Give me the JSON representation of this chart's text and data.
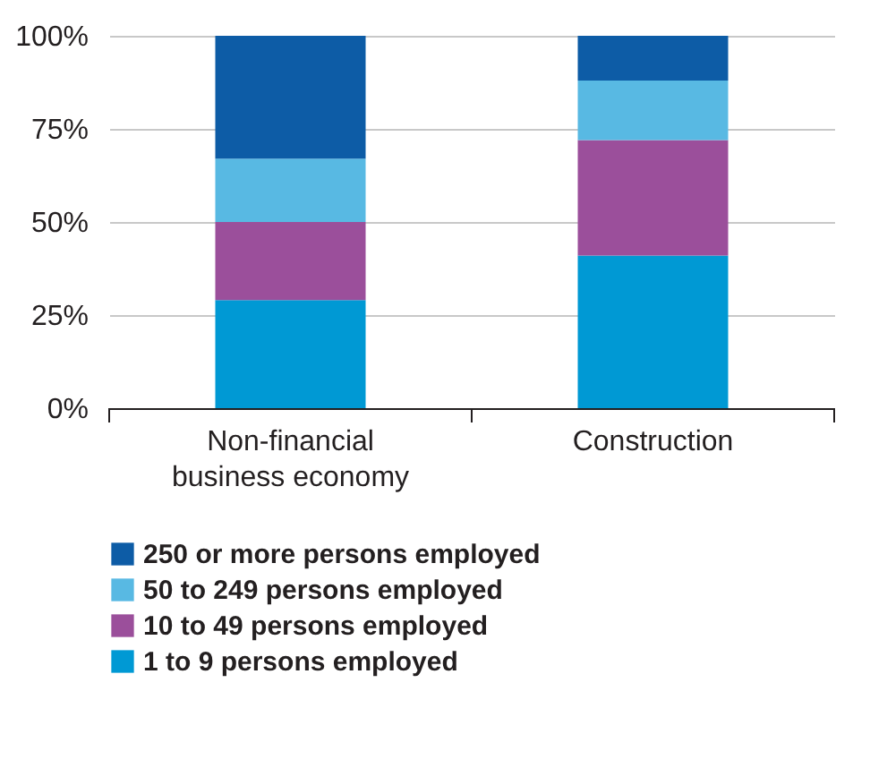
{
  "chart_data": {
    "type": "bar",
    "stacked": true,
    "categories": [
      "Non-financial\nbusiness economy",
      "Construction"
    ],
    "series": [
      {
        "name": "1 to 9 persons employed",
        "color": "#0099d4",
        "values": [
          29,
          41
        ]
      },
      {
        "name": "10 to 49 persons employed",
        "color": "#9b4f9b",
        "values": [
          21,
          31
        ]
      },
      {
        "name": "50 to 249 persons employed",
        "color": "#58b9e3",
        "values": [
          17,
          16
        ]
      },
      {
        "name": "250 or more persons employed",
        "color": "#0d5ca6",
        "values": [
          33,
          12
        ]
      }
    ],
    "ylim": [
      0,
      100
    ],
    "yticks": [
      {
        "value": 0,
        "label": "0%"
      },
      {
        "value": 25,
        "label": "25%"
      },
      {
        "value": 50,
        "label": "50%"
      },
      {
        "value": 75,
        "label": "75%"
      },
      {
        "value": 100,
        "label": "100%"
      }
    ],
    "grid": "y",
    "legend": "bottom"
  }
}
